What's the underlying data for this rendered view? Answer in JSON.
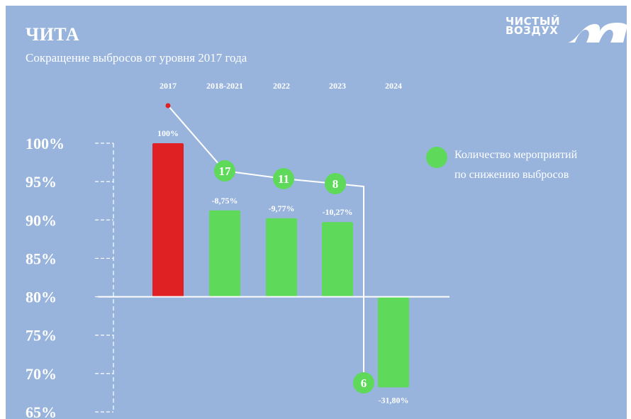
{
  "header": {
    "city": "ЧИТА",
    "subtitle": "Сокращение выбросов от уровня 2017 года"
  },
  "logo": {
    "line1": "ЧИСТЫЙ",
    "line2": "ВОЗДУХ",
    "icon": "chistyy-vozdukh-logo-icon"
  },
  "legend": {
    "line1": "Количество мероприятий",
    "line2": "по снижению выбросов",
    "color": "#5ed95a"
  },
  "colors": {
    "background": "#98b4dd",
    "baseline_bar": "#e02124",
    "reduction_bar": "#5ed95a",
    "lines": "#ffffff"
  },
  "chart_data": {
    "type": "bar",
    "title": "Сокращение выбросов от уровня 2017 года",
    "categories": [
      "2017",
      "2018-2021",
      "2022",
      "2023",
      "2024"
    ],
    "values": [
      100,
      91.25,
      90.23,
      89.73,
      68.2
    ],
    "value_labels": [
      "100%",
      "-8,75%",
      "-9,77%",
      "-10,27%",
      "-31,80%"
    ],
    "bar_colors": [
      "#e02124",
      "#5ed95a",
      "#5ed95a",
      "#5ed95a",
      "#5ed95a"
    ],
    "baseline": 80,
    "ylim": [
      65,
      100
    ],
    "yticks": [
      100,
      95,
      90,
      85,
      80,
      75,
      70,
      65
    ],
    "ytick_labels": [
      "100%",
      "95%",
      "90%",
      "85%",
      "80%",
      "75%",
      "70%",
      "65%"
    ],
    "measures_series": {
      "name": "Количество мероприятий по снижению выбросов",
      "categories": [
        "2018-2021",
        "2022",
        "2023",
        "2024"
      ],
      "values": [
        17,
        11,
        8,
        6
      ]
    }
  }
}
